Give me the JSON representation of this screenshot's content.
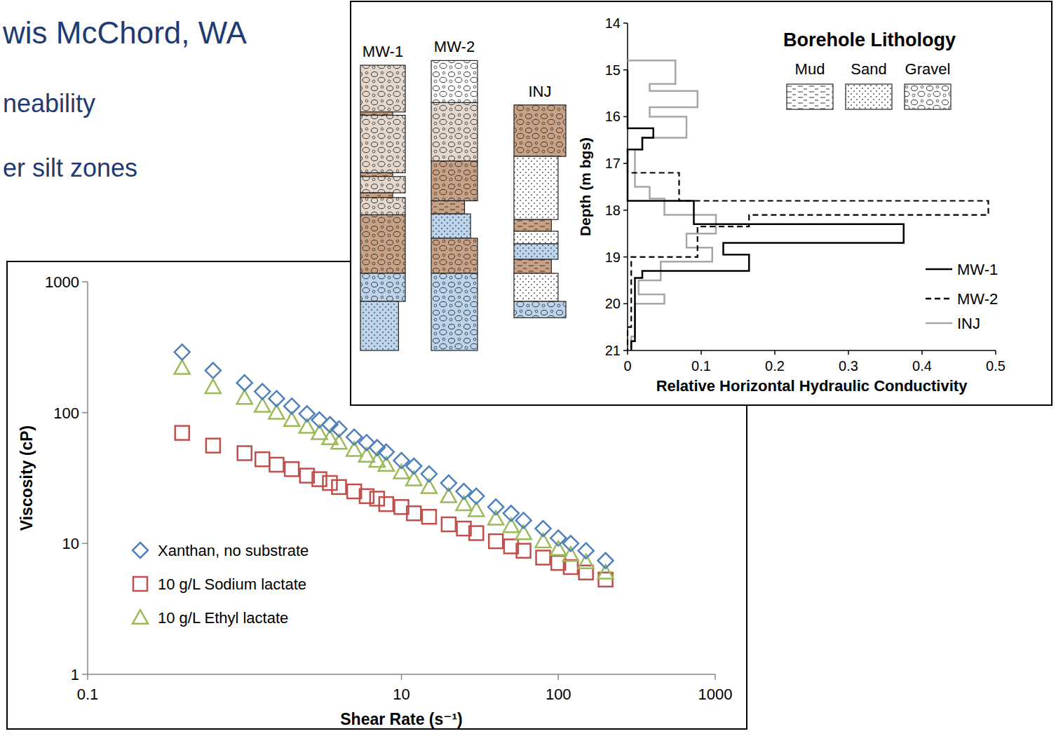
{
  "slide": {
    "title": "wis McChord, WA",
    "bullets": [
      "neability",
      "er silt zones"
    ]
  },
  "chart_data": [
    {
      "type": "scatter",
      "x_label": "Shear Rate (s⁻¹)",
      "y_label": "Viscosity (cP)",
      "log": true,
      "xlim": [
        0.1,
        1000
      ],
      "ylim": [
        1,
        1000
      ],
      "xticks": [
        0.1,
        10,
        100,
        1000
      ],
      "yticks": [
        1,
        10,
        100,
        1000
      ],
      "legend": "lower left",
      "x": [
        0.4,
        0.63,
        1,
        1.3,
        1.6,
        2,
        2.5,
        3,
        3.5,
        4,
        5,
        6,
        7,
        8,
        10,
        12,
        15,
        20,
        25,
        30,
        40,
        50,
        60,
        80,
        100,
        120,
        150,
        200
      ],
      "series": [
        {
          "name": "Xanthan, no substrate",
          "color": "#4f81bd",
          "marker": "diamond",
          "values": [
            290,
            210,
            169,
            145,
            128,
            112,
            98,
            88,
            81,
            75,
            65,
            59,
            54,
            50,
            43,
            39,
            34,
            29,
            25,
            23,
            19,
            17,
            15,
            13,
            11,
            10,
            8.8,
            7.4
          ]
        },
        {
          "name": "10 g/L Sodium lactate",
          "color": "#c0504d",
          "marker": "square",
          "values": [
            70,
            56,
            49,
            44,
            40,
            37,
            33,
            31,
            29,
            27,
            25,
            23,
            22,
            20,
            19,
            17,
            16,
            14,
            13,
            12,
            10.4,
            9.5,
            8.8,
            7.8,
            7.1,
            6.6,
            6.0,
            5.3
          ]
        },
        {
          "name": "10 g/L Ethyl lactate",
          "color": "#9bbb59",
          "marker": "triangle",
          "values": [
            220,
            157,
            130,
            113,
            100,
            88,
            78,
            70,
            64,
            59,
            52,
            47,
            43,
            40,
            35,
            31,
            27,
            23,
            20,
            18,
            15.5,
            13.6,
            12,
            10.4,
            9.1,
            8.2,
            7.2,
            6
          ]
        }
      ]
    },
    {
      "type": "line",
      "x_label": "Relative Horizontal Hydraulic Conductivity",
      "y_label": "Depth (m bgs)",
      "xlim": [
        0,
        0.5
      ],
      "ylim": [
        21,
        14
      ],
      "xticks": [
        0,
        0.1,
        0.2,
        0.3,
        0.4,
        0.5
      ],
      "yticks": [
        14,
        15,
        16,
        17,
        18,
        19,
        20,
        21
      ],
      "legend": "right",
      "series": [
        {
          "name": "MW-1",
          "color": "#000000",
          "line_style": "solid",
          "x": [
            0,
            0,
            0.035,
            0.035,
            0.02,
            0.02,
            0,
            0,
            0.09,
            0.09,
            0.375,
            0.375,
            0.13,
            0.13,
            0.165,
            0.165,
            0.02,
            0.02,
            0.01,
            0.01,
            0.005,
            0.005
          ],
          "values": [
            15.0,
            16.25,
            16.25,
            16.45,
            16.45,
            16.7,
            16.7,
            17.8,
            17.8,
            18.3,
            18.3,
            18.7,
            18.7,
            18.95,
            18.95,
            19.3,
            19.3,
            19.45,
            19.45,
            20.8,
            20.8,
            21.0
          ]
        },
        {
          "name": "MW-2",
          "color": "#000000",
          "line_style": "dashed",
          "x": [
            0,
            0,
            0.07,
            0.07,
            0.49,
            0.49,
            0.165,
            0.165,
            0.095,
            0.095,
            0.005,
            0.005,
            0,
            0
          ],
          "values": [
            16.7,
            17.2,
            17.2,
            17.8,
            17.8,
            18.1,
            18.1,
            18.35,
            18.35,
            19.0,
            19.0,
            20.5,
            20.5,
            21.0
          ]
        },
        {
          "name": "INJ",
          "color": "#a6a6a6",
          "line_style": "solid",
          "x": [
            0,
            0.065,
            0.065,
            0.03,
            0.03,
            0.095,
            0.095,
            0.03,
            0.03,
            0.08,
            0.08,
            0.02,
            0.02,
            0.01,
            0.01,
            0.03,
            0.03,
            0.05,
            0.05,
            0.12,
            0.12,
            0.08,
            0.08,
            0.115,
            0.115,
            0.045,
            0.045,
            0.015,
            0.015,
            0.05,
            0.05,
            0.01,
            0.01,
            0.005,
            0.005
          ],
          "values": [
            14.8,
            14.8,
            15.3,
            15.3,
            15.45,
            15.45,
            15.8,
            15.8,
            16.0,
            16.0,
            16.45,
            16.45,
            16.7,
            16.7,
            17.5,
            17.5,
            17.75,
            17.75,
            18.1,
            18.1,
            18.5,
            18.5,
            18.8,
            18.8,
            19.1,
            19.1,
            19.5,
            19.5,
            19.8,
            19.8,
            20.0,
            20.0,
            20.7,
            20.7,
            21.0
          ]
        }
      ]
    }
  ],
  "lithology": {
    "title": "Borehole Lithology",
    "legend": [
      {
        "label": "Mud",
        "lithology": "mud"
      },
      {
        "label": "Sand",
        "lithology": "sand"
      },
      {
        "label": "Gravel",
        "lithology": "gravel"
      }
    ],
    "columns": [
      {
        "label": "MW-1",
        "layers": [
          {
            "from": 14.9,
            "to": 15.9,
            "lithology": "gravel",
            "color": "#e6d8cc"
          },
          {
            "from": 15.9,
            "to": 15.97,
            "lithology": "mud",
            "color": "#c9a184"
          },
          {
            "from": 15.97,
            "to": 17.2,
            "lithology": "gravel",
            "color": "#e6d8cc"
          },
          {
            "from": 17.2,
            "to": 17.28,
            "lithology": "mud",
            "color": "#c9a184"
          },
          {
            "from": 17.28,
            "to": 17.63,
            "lithology": "gravel",
            "color": "#e6d8cc"
          },
          {
            "from": 17.63,
            "to": 17.73,
            "lithology": "mud",
            "color": "#c9a184"
          },
          {
            "from": 17.73,
            "to": 18.1,
            "lithology": "gravel",
            "color": "#e6d8cc"
          },
          {
            "from": 18.1,
            "to": 19.35,
            "lithology": "gravel",
            "color": "#c9a184"
          },
          {
            "from": 19.35,
            "to": 19.95,
            "lithology": "gravel",
            "color": "#bcd4ec"
          },
          {
            "from": 19.95,
            "to": 21.0,
            "lithology": "sand",
            "color": "#bcd4ec"
          }
        ]
      },
      {
        "label": "MW-2",
        "layers": [
          {
            "from": 14.8,
            "to": 15.7,
            "lithology": "gravel",
            "color": "#ffffff"
          },
          {
            "from": 15.7,
            "to": 16.95,
            "lithology": "gravel",
            "color": "#e6d8cc"
          },
          {
            "from": 16.95,
            "to": 17.8,
            "lithology": "gravel",
            "color": "#c9a184"
          },
          {
            "from": 17.8,
            "to": 18.08,
            "lithology": "mud",
            "color": "#c9a184"
          },
          {
            "from": 18.08,
            "to": 18.6,
            "lithology": "sand",
            "color": "#bcd4ec"
          },
          {
            "from": 18.6,
            "to": 19.35,
            "lithology": "gravel",
            "color": "#c9a184"
          },
          {
            "from": 19.35,
            "to": 21.0,
            "lithology": "gravel",
            "color": "#bcd4ec"
          }
        ]
      },
      {
        "label": "INJ",
        "layers": [
          {
            "from": 15.75,
            "to": 16.85,
            "lithology": "gravel",
            "color": "#c9a184"
          },
          {
            "from": 16.85,
            "to": 18.2,
            "lithology": "sand",
            "color": "#ffffff"
          },
          {
            "from": 18.2,
            "to": 18.45,
            "lithology": "mud",
            "color": "#c9a184"
          },
          {
            "from": 18.45,
            "to": 18.72,
            "lithology": "sand",
            "color": "#ffffff"
          },
          {
            "from": 18.72,
            "to": 19.05,
            "lithology": "sand",
            "color": "#bcd4ec"
          },
          {
            "from": 19.05,
            "to": 19.35,
            "lithology": "mud",
            "color": "#c9a184"
          },
          {
            "from": 19.35,
            "to": 19.95,
            "lithology": "sand",
            "color": "#ffffff"
          },
          {
            "from": 19.95,
            "to": 20.3,
            "lithology": "gravel",
            "color": "#bcd4ec"
          }
        ]
      }
    ]
  }
}
